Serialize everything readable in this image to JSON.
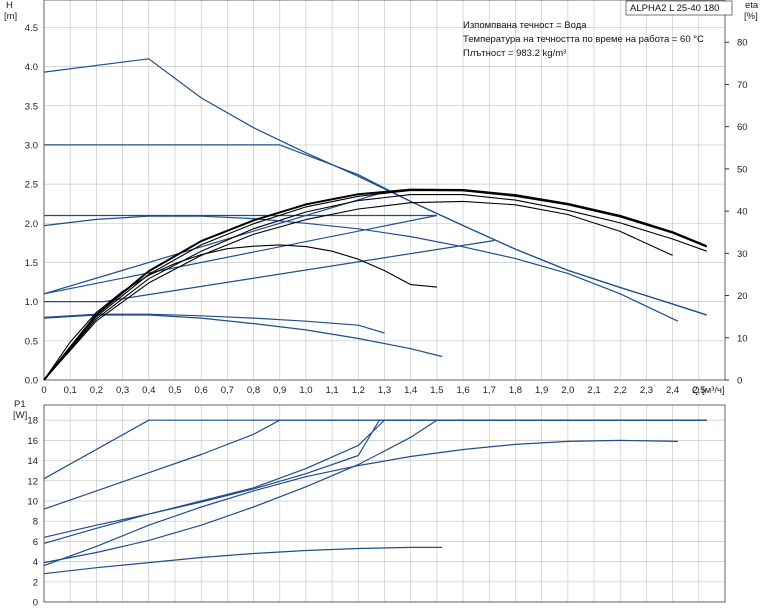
{
  "chart_data": [
    {
      "type": "line",
      "model": "ALPHA2 L 25-40 180",
      "info": [
        "Изпомпвана течност = Вода",
        "Температура на течността по време на работа = 60 °C",
        "Плътност = 983.2 kg/m³"
      ],
      "y_label_line1": "H",
      "y_label_line2": "[m]",
      "y2_label_line1": "eta",
      "y2_label_line2": "[%]",
      "x_label": "Q [м³/ч]",
      "xlim": [
        0,
        2.6
      ],
      "ylim": [
        0,
        4.85
      ],
      "y2lim": [
        0,
        90
      ],
      "x_ticks": [
        "0",
        "0,1",
        "0,2",
        "0,3",
        "0,4",
        "0,5",
        "0,6",
        "0,7",
        "0,8",
        "0,9",
        "1,0",
        "1,1",
        "1,2",
        "1,3",
        "1,4",
        "1,5",
        "1,6",
        "1,7",
        "1,8",
        "1,9",
        "2,0",
        "2,1",
        "2,2",
        "2,3",
        "2,4",
        "2,5"
      ],
      "y_ticks": [
        "0.0",
        "0.5",
        "1.0",
        "1.5",
        "2.0",
        "2.5",
        "3.0",
        "3.5",
        "4.0",
        "4.5"
      ],
      "y2_ticks": [
        "0",
        "10",
        "20",
        "30",
        "40",
        "50",
        "60",
        "70",
        "80"
      ],
      "head_curves": [
        {
          "x": [
            0,
            0.4,
            0.6,
            0.8,
            1.0,
            1.2,
            1.4,
            1.6,
            1.8,
            2.0,
            2.2,
            2.4,
            2.53
          ],
          "y": [
            3.93,
            4.1,
            3.6,
            3.22,
            2.9,
            2.6,
            2.28,
            1.97,
            1.67,
            1.4,
            1.18,
            0.97,
            0.83
          ]
        },
        {
          "x": [
            0,
            0.9,
            1.2,
            1.4,
            1.6,
            1.8,
            2.0,
            2.2,
            2.4,
            2.53
          ],
          "y": [
            3.0,
            3.0,
            2.62,
            2.28,
            1.97,
            1.67,
            1.4,
            1.18,
            0.97,
            0.83
          ]
        },
        {
          "x": [
            0,
            1.5
          ],
          "y": [
            2.1,
            2.1
          ]
        },
        {
          "x": [
            0,
            0.2,
            0.4,
            0.6,
            0.8,
            1.0,
            1.2,
            1.4,
            1.6,
            1.8,
            2.0,
            2.2,
            2.42
          ],
          "y": [
            1.97,
            2.05,
            2.09,
            2.09,
            2.06,
            2.0,
            1.93,
            1.83,
            1.7,
            1.55,
            1.36,
            1.1,
            0.75
          ]
        },
        {
          "x": [
            0,
            0.2,
            0.4,
            0.6,
            0.8,
            1.0,
            1.2,
            1.3
          ],
          "y": [
            0.8,
            0.84,
            0.84,
            0.82,
            0.79,
            0.75,
            0.7,
            0.6
          ]
        },
        {
          "x": [
            0,
            0.2,
            0.4,
            0.6,
            0.8,
            1.0,
            1.2,
            1.4,
            1.52
          ],
          "y": [
            0.79,
            0.83,
            0.83,
            0.79,
            0.72,
            0.64,
            0.53,
            0.4,
            0.3
          ]
        },
        {
          "x": [
            0,
            1.3
          ],
          "y": [
            1.1,
            2.4
          ]
        },
        {
          "x": [
            0,
            1.5
          ],
          "y": [
            1.1,
            2.1
          ]
        },
        {
          "x": [
            0,
            0.23,
            1.72
          ],
          "y": [
            1.0,
            1.0,
            1.78
          ]
        }
      ],
      "eta_curves": [
        {
          "x": [
            0,
            0.1,
            0.2,
            0.3,
            0.4,
            0.5,
            0.6,
            0.7,
            0.8,
            0.9,
            1.0,
            1.1,
            1.2,
            1.3,
            1.4,
            1.5
          ],
          "y": [
            0,
            9,
            16,
            21,
            24.8,
            27.6,
            29.7,
            31.1,
            31.7,
            32,
            31.6,
            30.5,
            28.6,
            25.9,
            22.6,
            22
          ]
        },
        {
          "x": [
            0,
            0.2,
            0.4,
            0.6,
            0.8,
            1.0,
            1.2,
            1.4,
            1.6,
            1.8,
            2.0,
            2.2,
            2.4
          ],
          "y": [
            0,
            14,
            23,
            29.5,
            34.5,
            38,
            40.5,
            42,
            42.3,
            41.5,
            39.2,
            35.2,
            29.5
          ]
        },
        {
          "x": [
            0,
            0.2,
            0.4,
            0.6,
            0.8,
            1.0,
            1.2,
            1.4,
            1.6,
            1.8,
            2.0,
            2.2,
            2.4,
            2.53
          ],
          "y": [
            0,
            14.5,
            24,
            30.5,
            35.8,
            39.8,
            42.5,
            43.9,
            43.9,
            42.6,
            40.2,
            37.2,
            33.4,
            30.5
          ]
        },
        {
          "x": [
            0,
            0.2,
            0.4,
            0.6,
            0.8,
            1.0,
            1.2,
            1.4,
            1.6,
            1.8,
            2.0,
            2.2,
            2.4,
            2.53
          ],
          "y": [
            0,
            15,
            25,
            32,
            37,
            41,
            43.5,
            44.9,
            44.8,
            43.5,
            41.5,
            38.6,
            34.8,
            31.5
          ]
        },
        {
          "x": [
            0,
            0.2,
            0.4,
            0.6,
            0.8,
            1.0,
            1.2,
            1.4,
            1.6,
            1.8,
            2.0,
            2.2,
            2.4,
            2.53
          ],
          "y": [
            0,
            15.5,
            25.8,
            32.9,
            37.8,
            41.6,
            44,
            45.1,
            45,
            43.8,
            41.7,
            38.9,
            35,
            31.7
          ]
        }
      ]
    },
    {
      "type": "line",
      "y_label_line1": "P1",
      "y_label_line2": "[W]",
      "xlim": [
        0,
        2.6
      ],
      "ylim": [
        0,
        19.5
      ],
      "y_ticks": [
        "0",
        "2",
        "4",
        "6",
        "8",
        "10",
        "12",
        "14",
        "16",
        "18"
      ],
      "power_curves": [
        {
          "x": [
            0,
            0.4,
            2.53
          ],
          "y": [
            12.2,
            18,
            18
          ]
        },
        {
          "x": [
            0,
            0.2,
            0.4,
            0.6,
            0.8,
            0.9,
            2.53
          ],
          "y": [
            9.2,
            11,
            12.8,
            14.6,
            16.6,
            18,
            18
          ]
        },
        {
          "x": [
            0,
            0.2,
            0.4,
            0.6,
            0.8,
            1.0,
            1.2,
            1.28,
            2.53
          ],
          "y": [
            6.4,
            7.6,
            8.7,
            9.9,
            11.2,
            12.7,
            14.5,
            18,
            18
          ]
        },
        {
          "x": [
            0,
            0.2,
            0.4,
            0.6,
            0.8,
            1.0,
            1.2,
            1.3,
            2.53
          ],
          "y": [
            5.8,
            7.3,
            8.7,
            10,
            11.3,
            13.2,
            15.5,
            18,
            18
          ]
        },
        {
          "x": [
            0,
            0.2,
            0.4,
            0.6,
            0.8,
            1.0,
            1.2,
            1.4,
            1.5,
            2.53
          ],
          "y": [
            3.9,
            4.9,
            6.1,
            7.6,
            9.4,
            11.4,
            13.6,
            16.3,
            18,
            18
          ]
        },
        {
          "x": [
            0,
            0.2,
            0.4,
            0.6,
            0.8,
            1.0,
            1.2,
            1.4,
            1.6,
            1.8,
            2.0,
            2.2,
            2.42
          ],
          "y": [
            3.6,
            5.5,
            7.6,
            9.4,
            11,
            12.4,
            13.5,
            14.4,
            15.1,
            15.6,
            15.9,
            16,
            15.9
          ]
        },
        {
          "x": [
            0,
            0.2,
            0.4,
            0.6,
            0.8,
            1.0,
            1.2,
            1.4,
            1.52
          ],
          "y": [
            2.8,
            3.4,
            3.9,
            4.4,
            4.8,
            5.1,
            5.3,
            5.4,
            5.4
          ]
        }
      ]
    }
  ]
}
